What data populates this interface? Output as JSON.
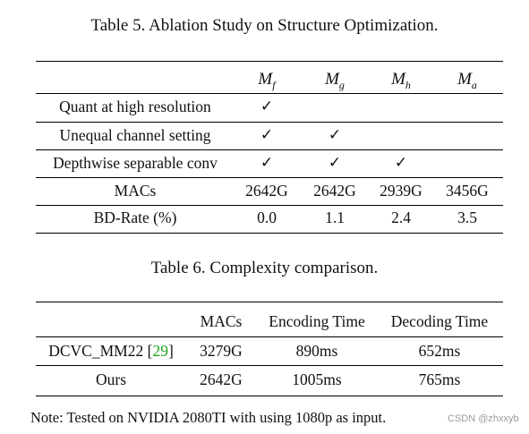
{
  "table5": {
    "caption": "Table 5. Ablation Study on Structure Optimization.",
    "columns": [
      {
        "base": "M",
        "sub": "f"
      },
      {
        "base": "M",
        "sub": "g"
      },
      {
        "base": "M",
        "sub": "h"
      },
      {
        "base": "M",
        "sub": "a"
      }
    ],
    "check_symbol": "✓",
    "rows": [
      {
        "label": "Quant at high resolution",
        "checks": [
          true,
          false,
          false,
          false
        ]
      },
      {
        "label": "Unequal channel setting",
        "checks": [
          true,
          true,
          false,
          false
        ]
      },
      {
        "label": "Depthwise separable conv",
        "checks": [
          true,
          true,
          true,
          false
        ]
      }
    ],
    "macs": {
      "label": "MACs",
      "values": [
        "2642G",
        "2642G",
        "2939G",
        "3456G"
      ]
    },
    "bdrate": {
      "label": "BD-Rate (%)",
      "values": [
        "0.0",
        "1.1",
        "2.4",
        "3.5"
      ]
    }
  },
  "table6": {
    "caption": "Table 6. Complexity comparison.",
    "headers": [
      "MACs",
      "Encoding Time",
      "Decoding Time"
    ],
    "rows": [
      {
        "method": "DCVC_MM22",
        "cite_open": "[",
        "cite_num": "29",
        "cite_close": "]",
        "values": [
          "3279G",
          "890ms",
          "652ms"
        ]
      },
      {
        "method": "Ours",
        "values": [
          "2642G",
          "1005ms",
          "765ms"
        ]
      }
    ]
  },
  "note": "Note: Tested on NVIDIA 2080TI with using 1080p as input.",
  "watermark": "CSDN @zhxxyb",
  "colors": {
    "citation": "#1fa31f",
    "text": "#111111",
    "watermark": "#9a9a9a"
  }
}
